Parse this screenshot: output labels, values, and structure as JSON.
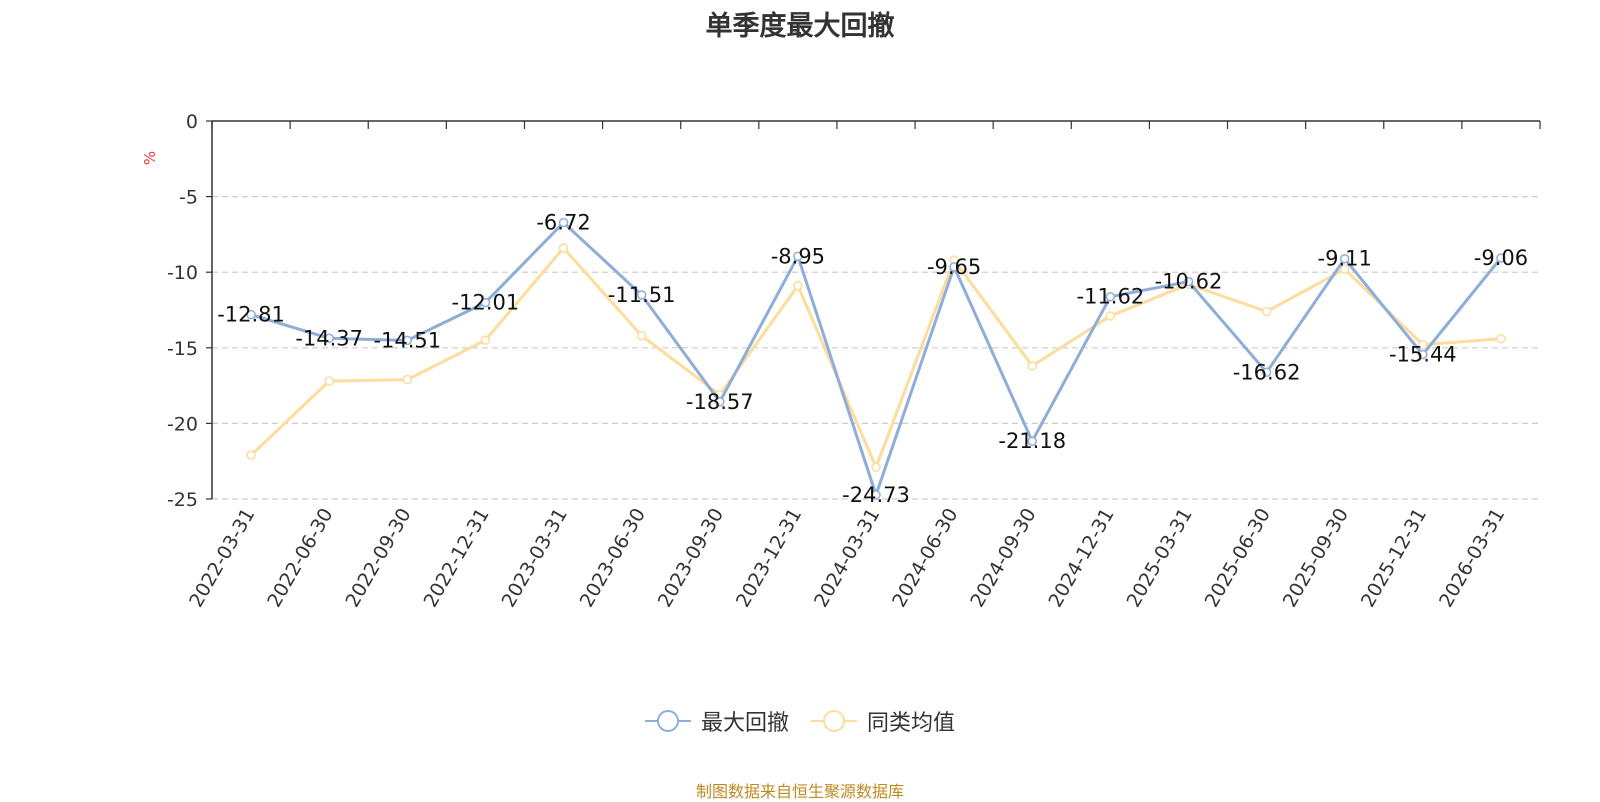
{
  "chart_data": {
    "type": "line",
    "title": "单季度最大回撤",
    "ylabel": "%",
    "xlabel": "",
    "ylim": [
      -25,
      0
    ],
    "yticks": [
      0,
      -5,
      -10,
      -15,
      -20,
      -25
    ],
    "categories": [
      "2022-03-31",
      "2022-06-30",
      "2022-09-30",
      "2022-12-31",
      "2023-03-31",
      "2023-06-30",
      "2023-09-30",
      "2023-12-31",
      "2024-03-31",
      "2024-06-30",
      "2024-09-30",
      "2024-12-31",
      "2025-03-31",
      "2025-06-30",
      "2025-09-30",
      "2025-12-31",
      "2026-03-31"
    ],
    "series": [
      {
        "name": "最大回撤",
        "color": "#8eadd9",
        "values": [
          -12.81,
          -14.37,
          -14.51,
          -12.01,
          -6.72,
          -11.51,
          -18.57,
          -8.95,
          -24.73,
          -9.65,
          -21.18,
          -11.62,
          -10.62,
          -16.62,
          -9.11,
          -15.44,
          -9.06
        ],
        "labels": [
          "-12.81",
          "-14.37",
          "-14.51",
          "-12.01",
          "-6.72",
          "-11.51",
          "-18.57",
          "-8.95",
          "-24.73",
          "-9.65",
          "-21.18",
          "-11.62",
          "-10.62",
          "-16.62",
          "-9.11",
          "-15.44",
          "-9.06"
        ]
      },
      {
        "name": "同类均值",
        "color": "#fddc9c",
        "values": [
          -22.1,
          -17.2,
          -17.1,
          -14.5,
          -8.4,
          -14.2,
          -18.1,
          -10.9,
          -22.9,
          -9.2,
          -16.2,
          -12.9,
          -10.8,
          -12.6,
          -9.8,
          -14.8,
          -14.4
        ]
      }
    ],
    "grid": true,
    "legend_position": "bottom-center"
  },
  "footer": {
    "source": "制图数据来自恒生聚源数据库"
  }
}
